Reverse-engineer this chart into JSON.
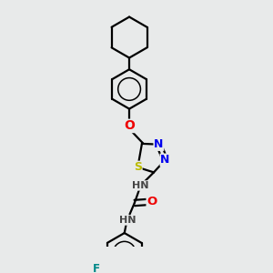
{
  "background_color": "#e8eaea",
  "line_color": "#000000",
  "bond_width": 1.6,
  "font_size_atoms": 8.5,
  "colors": {
    "N": "#0000ee",
    "O": "#ee0000",
    "S": "#bbbb00",
    "F": "#008888",
    "H": "#444444",
    "C": "#000000"
  },
  "figsize": [
    3.0,
    3.0
  ],
  "dpi": 100
}
